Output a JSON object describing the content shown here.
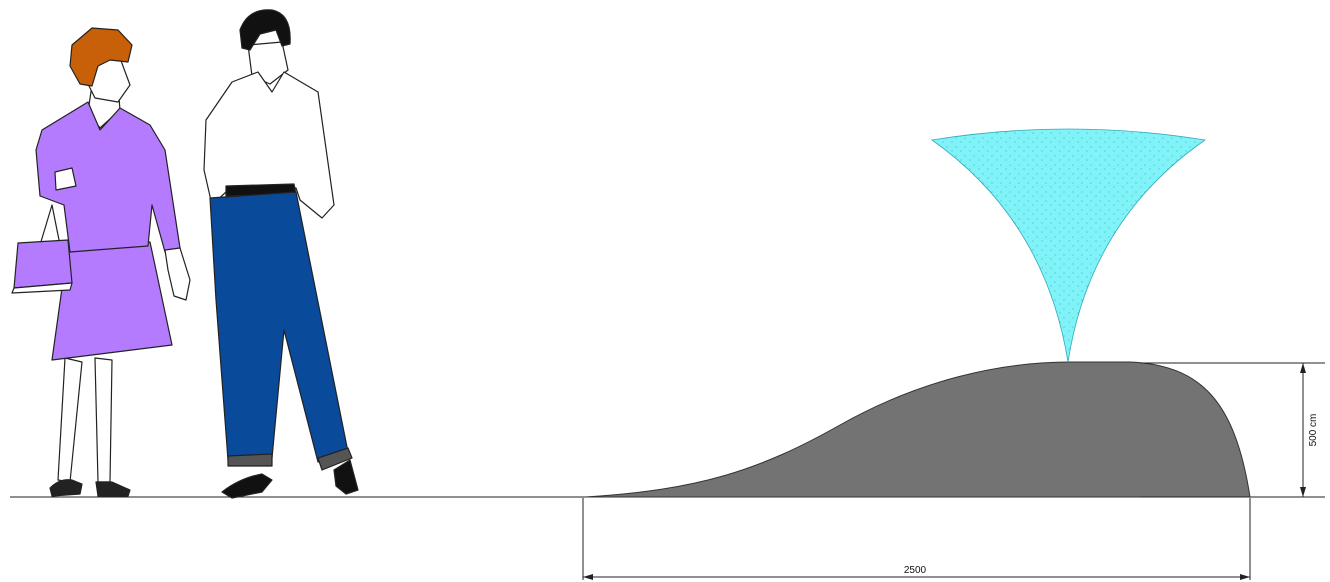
{
  "dimensions": {
    "width_label": "2500",
    "height_label": "500 cm"
  }
}
